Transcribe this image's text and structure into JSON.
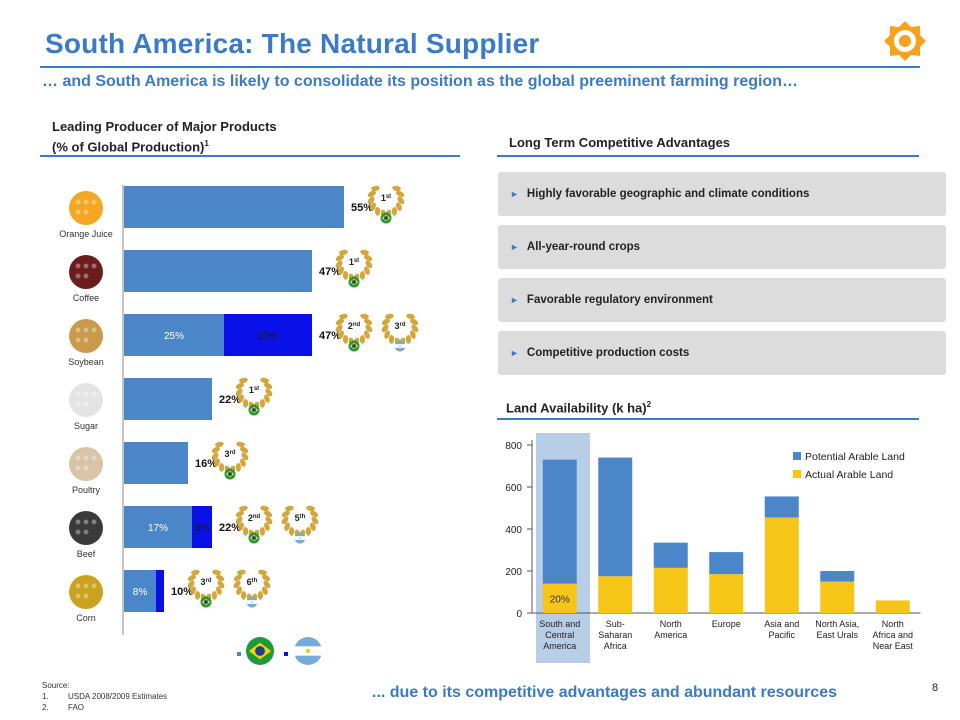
{
  "title": "South America: The Natural Supplier",
  "subtitle": "… and South America is likely to consolidate its position as the global preeminent farming region…",
  "left_panel": {
    "heading_line1": "Leading Producer of Major Products",
    "heading_line2": "(% of Global Production)",
    "heading_sup": "1",
    "products": [
      {
        "label": "Orange Juice",
        "segments": [
          55
        ],
        "total": "55%",
        "ranks": [
          "1st"
        ],
        "flags": [
          "brazil"
        ]
      },
      {
        "label": "Coffee",
        "segments": [
          47
        ],
        "total": "47%",
        "ranks": [
          "1st"
        ],
        "flags": [
          "brazil"
        ]
      },
      {
        "label": "Soybean",
        "segments": [
          25,
          22
        ],
        "segment_labels": [
          "25%",
          "22%"
        ],
        "total": "47%",
        "ranks": [
          "2nd",
          "3rd"
        ],
        "flags": [
          "brazil",
          "argentina"
        ]
      },
      {
        "label": "Sugar",
        "segments": [
          22
        ],
        "total": "22%",
        "ranks": [
          "1st"
        ],
        "flags": [
          "brazil"
        ]
      },
      {
        "label": "Poultry",
        "segments": [
          16
        ],
        "total": "16%",
        "ranks": [
          "3rd"
        ],
        "flags": [
          "brazil"
        ]
      },
      {
        "label": "Beef",
        "segments": [
          17,
          5
        ],
        "segment_labels": [
          "17%",
          "5%"
        ],
        "total": "22%",
        "ranks": [
          "2nd",
          "5th"
        ],
        "flags": [
          "brazil",
          "argentina"
        ]
      },
      {
        "label": "Corn",
        "segments": [
          8,
          2
        ],
        "segment_labels": [
          "8%",
          ""
        ],
        "total": "10%",
        "ranks": [
          "3rd",
          "6th"
        ],
        "flags": [
          "brazil",
          "argentina"
        ]
      }
    ],
    "colors": {
      "brazil": "#4a86c8",
      "argentina": "#0a10e8",
      "laurel": "#d4a53a"
    }
  },
  "right_panel": {
    "heading": "Long Term Competitive Advantages",
    "advantages": [
      "Highly favorable geographic and climate conditions",
      "All-year-round crops",
      "Favorable regulatory environment",
      "Competitive production costs"
    ]
  },
  "land_heading": "Land Availability  (k ha)",
  "land_heading_sup": "2",
  "chart_data": {
    "type": "bar",
    "stacked": true,
    "title": "",
    "ylim": [
      0,
      800
    ],
    "yticks": [
      0,
      200,
      400,
      600,
      800
    ],
    "categories": [
      [
        "South and",
        "Central",
        "America"
      ],
      [
        "Sub-",
        "Saharan",
        "Africa"
      ],
      [
        "North",
        "America"
      ],
      [
        "Europe"
      ],
      [
        "Asia and",
        "Pacific"
      ],
      [
        "North Asia,",
        "East Urals"
      ],
      [
        "North",
        "Africa and",
        "Near East"
      ]
    ],
    "series": [
      {
        "name": "Actual Arable Land",
        "color": "#f5c518",
        "values": [
          140,
          175,
          215,
          185,
          455,
          150,
          60
        ]
      },
      {
        "name": "Potential Arable Land",
        "color": "#4a86c8",
        "values": [
          590,
          565,
          120,
          105,
          100,
          50,
          0
        ]
      }
    ],
    "annotation": "20%",
    "legend_position": "top-right",
    "highlight_color": "#b8cde6",
    "grid": false
  },
  "source": {
    "label": "Source:",
    "items": [
      {
        "num": "1.",
        "text": "USDA 2008/2009 Estimates"
      },
      {
        "num": "2.",
        "text": "FAO"
      }
    ]
  },
  "footer": "... due to its competitive advantages and abundant resources",
  "page_number": "8"
}
